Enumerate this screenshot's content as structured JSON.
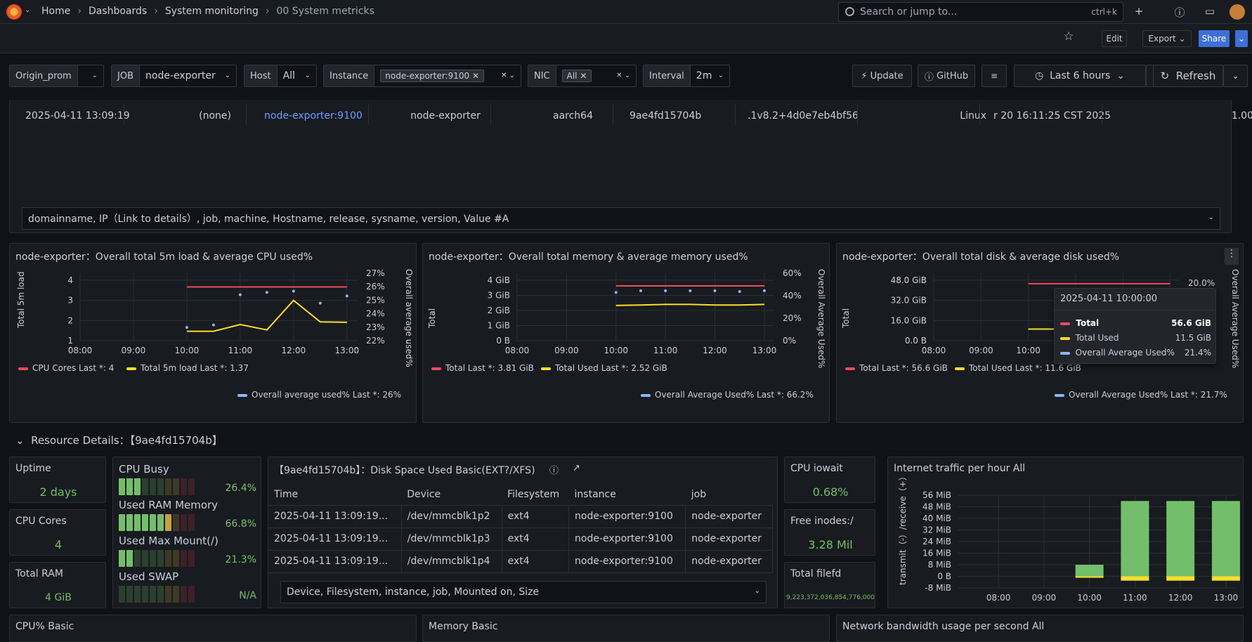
{
  "breadcrumbs": [
    "Home",
    "Dashboards",
    "System monitoring",
    "00 System metricks"
  ],
  "search": {
    "placeholder": "Search or jump to...",
    "shortcut": "ctrl+k"
  },
  "toolbar": {
    "edit": "Edit",
    "export": "Export",
    "share": "Share"
  },
  "variables": {
    "datasource": "Origin_prom",
    "job": {
      "label": "JOB",
      "value": "node-exporter"
    },
    "host": {
      "label": "Host",
      "value": "All"
    },
    "instance": {
      "label": "Instance",
      "value": "node-exporter:9100"
    },
    "nic": {
      "label": "NIC",
      "value": "All"
    },
    "interval": {
      "label": "Interval",
      "value": "2m"
    }
  },
  "actions": {
    "update": "Update",
    "github": "GitHub",
    "time_range": "Last 6 hours",
    "refresh": "Refresh"
  },
  "info_table": {
    "row": [
      "2025-04-11 13:09:19",
      "(none)",
      "node-exporter:9100",
      "node-exporter",
      "aarch64",
      "9ae4fd15704b",
      ".1v8.2+4d0e7eb4bf56",
      "Linux",
      "r 20 16:11:25 CST 2025",
      "1.00"
    ],
    "columns_select": "domainname, IP（Link to details）, job, machine, Hostname, release, sysname, version, Value #A"
  },
  "chart_data": [
    {
      "type": "line",
      "title": "node-exporter：Overall total 5m load & average CPU used%",
      "ylabel": "Total 5m load",
      "y2label": "Overall average used%",
      "x": [
        "10:00",
        "10:30",
        "11:00",
        "11:30",
        "12:00",
        "12:30",
        "13:00"
      ],
      "series": [
        {
          "name": "CPU Cores",
          "values": [
            4,
            4,
            4,
            4,
            4,
            4,
            4
          ]
        },
        {
          "name": "Total 5m load",
          "values": [
            0.7,
            0.7,
            1.2,
            0.8,
            3.0,
            1.4,
            1.37
          ]
        },
        {
          "name": "Overall average used%",
          "values": [
            23.1,
            23.3,
            25.8,
            26.0,
            26.1,
            25.1,
            25.7
          ]
        }
      ],
      "ylim": [
        0,
        4
      ],
      "y2lim": [
        22,
        27
      ],
      "xticks": [
        "08:00",
        "09:00",
        "10:00",
        "11:00",
        "12:00",
        "13:00"
      ],
      "yticks": [
        "4",
        "3",
        "2",
        "1"
      ],
      "y2ticks": [
        "27%",
        "26%",
        "25%",
        "24%",
        "23%",
        "22%"
      ],
      "legend": [
        "CPU Cores  Last *: 4",
        "Total 5m load  Last *: 1.37",
        "Overall average used%  Last *: 26%"
      ]
    },
    {
      "type": "line",
      "title": "node-exporter：Overall total memory & average memory used%",
      "ylabel": "Total",
      "y2label": "Overall Average Used%",
      "x": [
        "10:00",
        "10:30",
        "11:00",
        "11:30",
        "12:00",
        "12:30",
        "13:00"
      ],
      "series": [
        {
          "name": "Total",
          "values": [
            3.81,
            3.81,
            3.81,
            3.81,
            3.81,
            3.81,
            3.81
          ]
        },
        {
          "name": "Total Used",
          "values": [
            2.45,
            2.48,
            2.52,
            2.52,
            2.48,
            2.48,
            2.52
          ]
        },
        {
          "name": "Overall Average Used%",
          "values": [
            64,
            66,
            66,
            66,
            66,
            65,
            66.2
          ]
        }
      ],
      "yticks": [
        "4 GiB",
        "3 GiB",
        "2 GiB",
        "1 GiB",
        "0 B"
      ],
      "y2ticks": [
        "60%",
        "40%",
        "20%",
        "0%"
      ],
      "xticks": [
        "08:00",
        "09:00",
        "10:00",
        "11:00",
        "12:00",
        "13:00"
      ],
      "legend": [
        "Total  Last *: 3.81 GiB",
        "Total Used  Last *: 2.52 GiB",
        "Overall Average Used%  Last *: 66.2%"
      ]
    },
    {
      "type": "line",
      "title": "node-exporter：Overall total disk & average disk used%",
      "ylabel": "Total",
      "y2label": "Overall Average Used%",
      "x": [
        "10:00",
        "10:30",
        "11:00",
        "11:30",
        "12:00",
        "12:30",
        "13:00"
      ],
      "series": [
        {
          "name": "Total",
          "values": [
            56.6,
            56.6,
            56.6,
            56.6,
            56.6,
            56.6,
            56.6
          ]
        },
        {
          "name": "Total Used",
          "values": [
            11.5,
            11.5,
            11.5,
            11.6,
            11.6,
            11.6,
            11.6
          ]
        }
      ],
      "yticks": [
        "48.0 GiB",
        "32.0 GiB",
        "16.0 GiB",
        "0.0 B"
      ],
      "y2ticks": [
        "20.0%"
      ],
      "xticks": [
        "08:00",
        "09:00",
        "10:00",
        "11:00",
        "12:00",
        "13:00"
      ],
      "legend": [
        "Total  Last *: 56.6 GiB",
        "Total Used  Last *: 11.6 GiB",
        "Overall Average Used%  Last *: 21.7%"
      ]
    },
    {
      "type": "bar",
      "title": "Internet traffic per hour All",
      "ylabel": "transmit（-）/receive（+）",
      "categories": [
        "08:00",
        "09:00",
        "10:00",
        "11:00",
        "12:00",
        "13:00"
      ],
      "series": [
        {
          "name": "receive",
          "values": [
            0,
            0,
            8,
            52,
            52,
            52
          ]
        },
        {
          "name": "transmit",
          "values": [
            0,
            0,
            -1,
            -3,
            -3,
            -3
          ]
        }
      ],
      "yticks": [
        "56 MiB",
        "48 MiB",
        "40 MiB",
        "32 MiB",
        "24 MiB",
        "16 MiB",
        "8 MiB",
        "0 B",
        "-8 MiB"
      ]
    }
  ],
  "tooltip": {
    "time": "2025-04-11 10:00:00",
    "rows": [
      {
        "name": "Total",
        "value": "56.6 GiB",
        "color": "#f2495c"
      },
      {
        "name": "Total Used",
        "value": "11.5 GiB",
        "color": "#fade2a"
      },
      {
        "name": "Overall Average Used%",
        "value": "21.4%",
        "color": "#8ab8ff"
      }
    ]
  },
  "resource": {
    "title": "Resource Details：【9ae4fd15704b】",
    "uptime": {
      "label": "Uptime",
      "value": "2 days"
    },
    "cpu_cores": {
      "label": "CPU Cores",
      "value": "4"
    },
    "total_ram": {
      "label": "Total RAM",
      "value": "4 GiB"
    },
    "bars": [
      {
        "label": "CPU Busy",
        "value": "26.4%",
        "fraction": 0.264
      },
      {
        "label": "Used RAM Memory",
        "value": "66.8%",
        "fraction": 0.668
      },
      {
        "label": "Used Max Mount(/)",
        "value": "21.3%",
        "fraction": 0.213
      },
      {
        "label": "Used SWAP",
        "value": "N/A",
        "fraction": 0
      }
    ],
    "disk": {
      "title": "【9ae4fd15704b】：Disk Space Used Basic(EXT?/XFS)",
      "columns": [
        "Time",
        "Device",
        "Filesystem",
        "instance",
        "job"
      ],
      "rows": [
        [
          "2025-04-11 13:09:19...",
          "/dev/mmcblk1p2",
          "ext4",
          "node-exporter:9100",
          "node-exporter"
        ],
        [
          "2025-04-11 13:09:19...",
          "/dev/mmcblk1p3",
          "ext4",
          "node-exporter:9100",
          "node-exporter"
        ],
        [
          "2025-04-11 13:09:19...",
          "/dev/mmcblk1p4",
          "ext4",
          "node-exporter:9100",
          "node-exporter"
        ]
      ],
      "select": "Device, Filesystem, instance, job, Mounted on, Size"
    },
    "iowait": {
      "label": "CPU iowait",
      "value": "0.68%"
    },
    "inodes": {
      "label": "Free inodes:/",
      "value": "3.28 Mil"
    },
    "filefd": {
      "label": "Total filefd",
      "value": "9,223,372,036,854,776,000"
    }
  },
  "bottom": [
    "CPU% Basic",
    "Memory Basic",
    "Network bandwidth usage per second All"
  ],
  "colors": {
    "red": "#f2495c",
    "yellow": "#fade2a",
    "blue": "#8ab8ff",
    "green": "#73bf69"
  }
}
